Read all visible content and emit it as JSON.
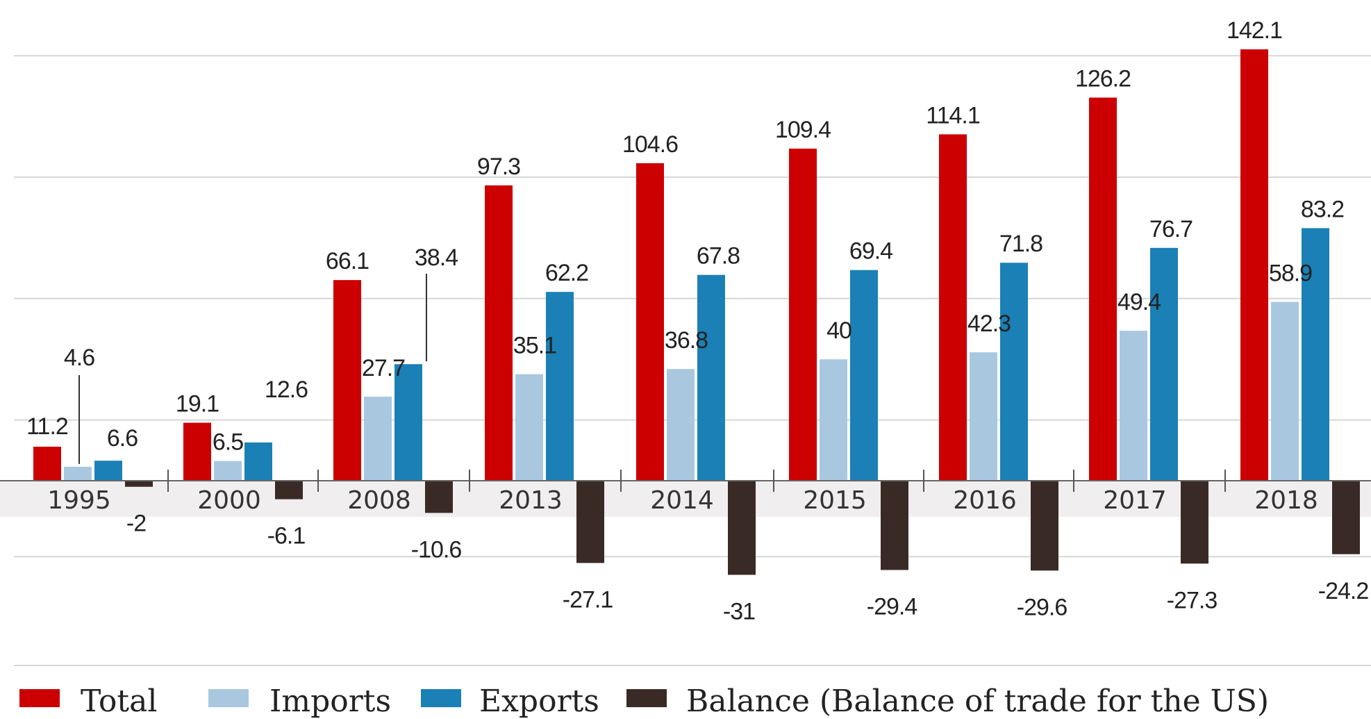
{
  "chart_data": {
    "type": "bar",
    "categories": [
      "1995",
      "2000",
      "2008",
      "2013",
      "2014",
      "2015",
      "2016",
      "2017",
      "2018"
    ],
    "series": [
      {
        "name": "Total",
        "color": "#cc0000",
        "values": [
          11.2,
          19.1,
          66.1,
          97.3,
          104.6,
          109.4,
          114.1,
          126.2,
          142.1
        ]
      },
      {
        "name": "Imports",
        "color": "#a9c8e0",
        "values": [
          4.6,
          6.5,
          27.7,
          35.1,
          36.8,
          40,
          42.3,
          49.4,
          58.9
        ]
      },
      {
        "name": "Exports",
        "color": "#1b80b5",
        "values": [
          6.6,
          12.6,
          38.4,
          62.2,
          67.8,
          69.4,
          71.8,
          76.7,
          83.2
        ]
      },
      {
        "name": "Balance (Balance of trade for the US)",
        "color": "#3a2a26",
        "values": [
          -2,
          -6.1,
          -10.6,
          -27.1,
          -31,
          -29.4,
          -29.6,
          -27.3,
          -24.2
        ]
      }
    ],
    "labels": [
      [
        "11.2",
        "4.6",
        "6.6",
        "-2"
      ],
      [
        "19.1",
        "6.5",
        "12.6",
        "-6.1"
      ],
      [
        "66.1",
        "27.7",
        "38.4",
        "-10.6"
      ],
      [
        "97.3",
        "35.1",
        "62.2",
        "-27.1"
      ],
      [
        "104.6",
        "36.8",
        "67.8",
        "-31"
      ],
      [
        "109.4",
        "40",
        "69.4",
        "-29.4"
      ],
      [
        "114.1",
        "42.3",
        "71.8",
        "-29.6"
      ],
      [
        "126.2",
        "49.4",
        "76.7",
        "-27.3"
      ],
      [
        "142.1",
        "58.9",
        "83.2",
        "-24.2"
      ]
    ],
    "ylim": [
      -45,
      150
    ],
    "grid": true,
    "legend_position": "bottom",
    "title": "",
    "xlabel": "",
    "ylabel": ""
  }
}
